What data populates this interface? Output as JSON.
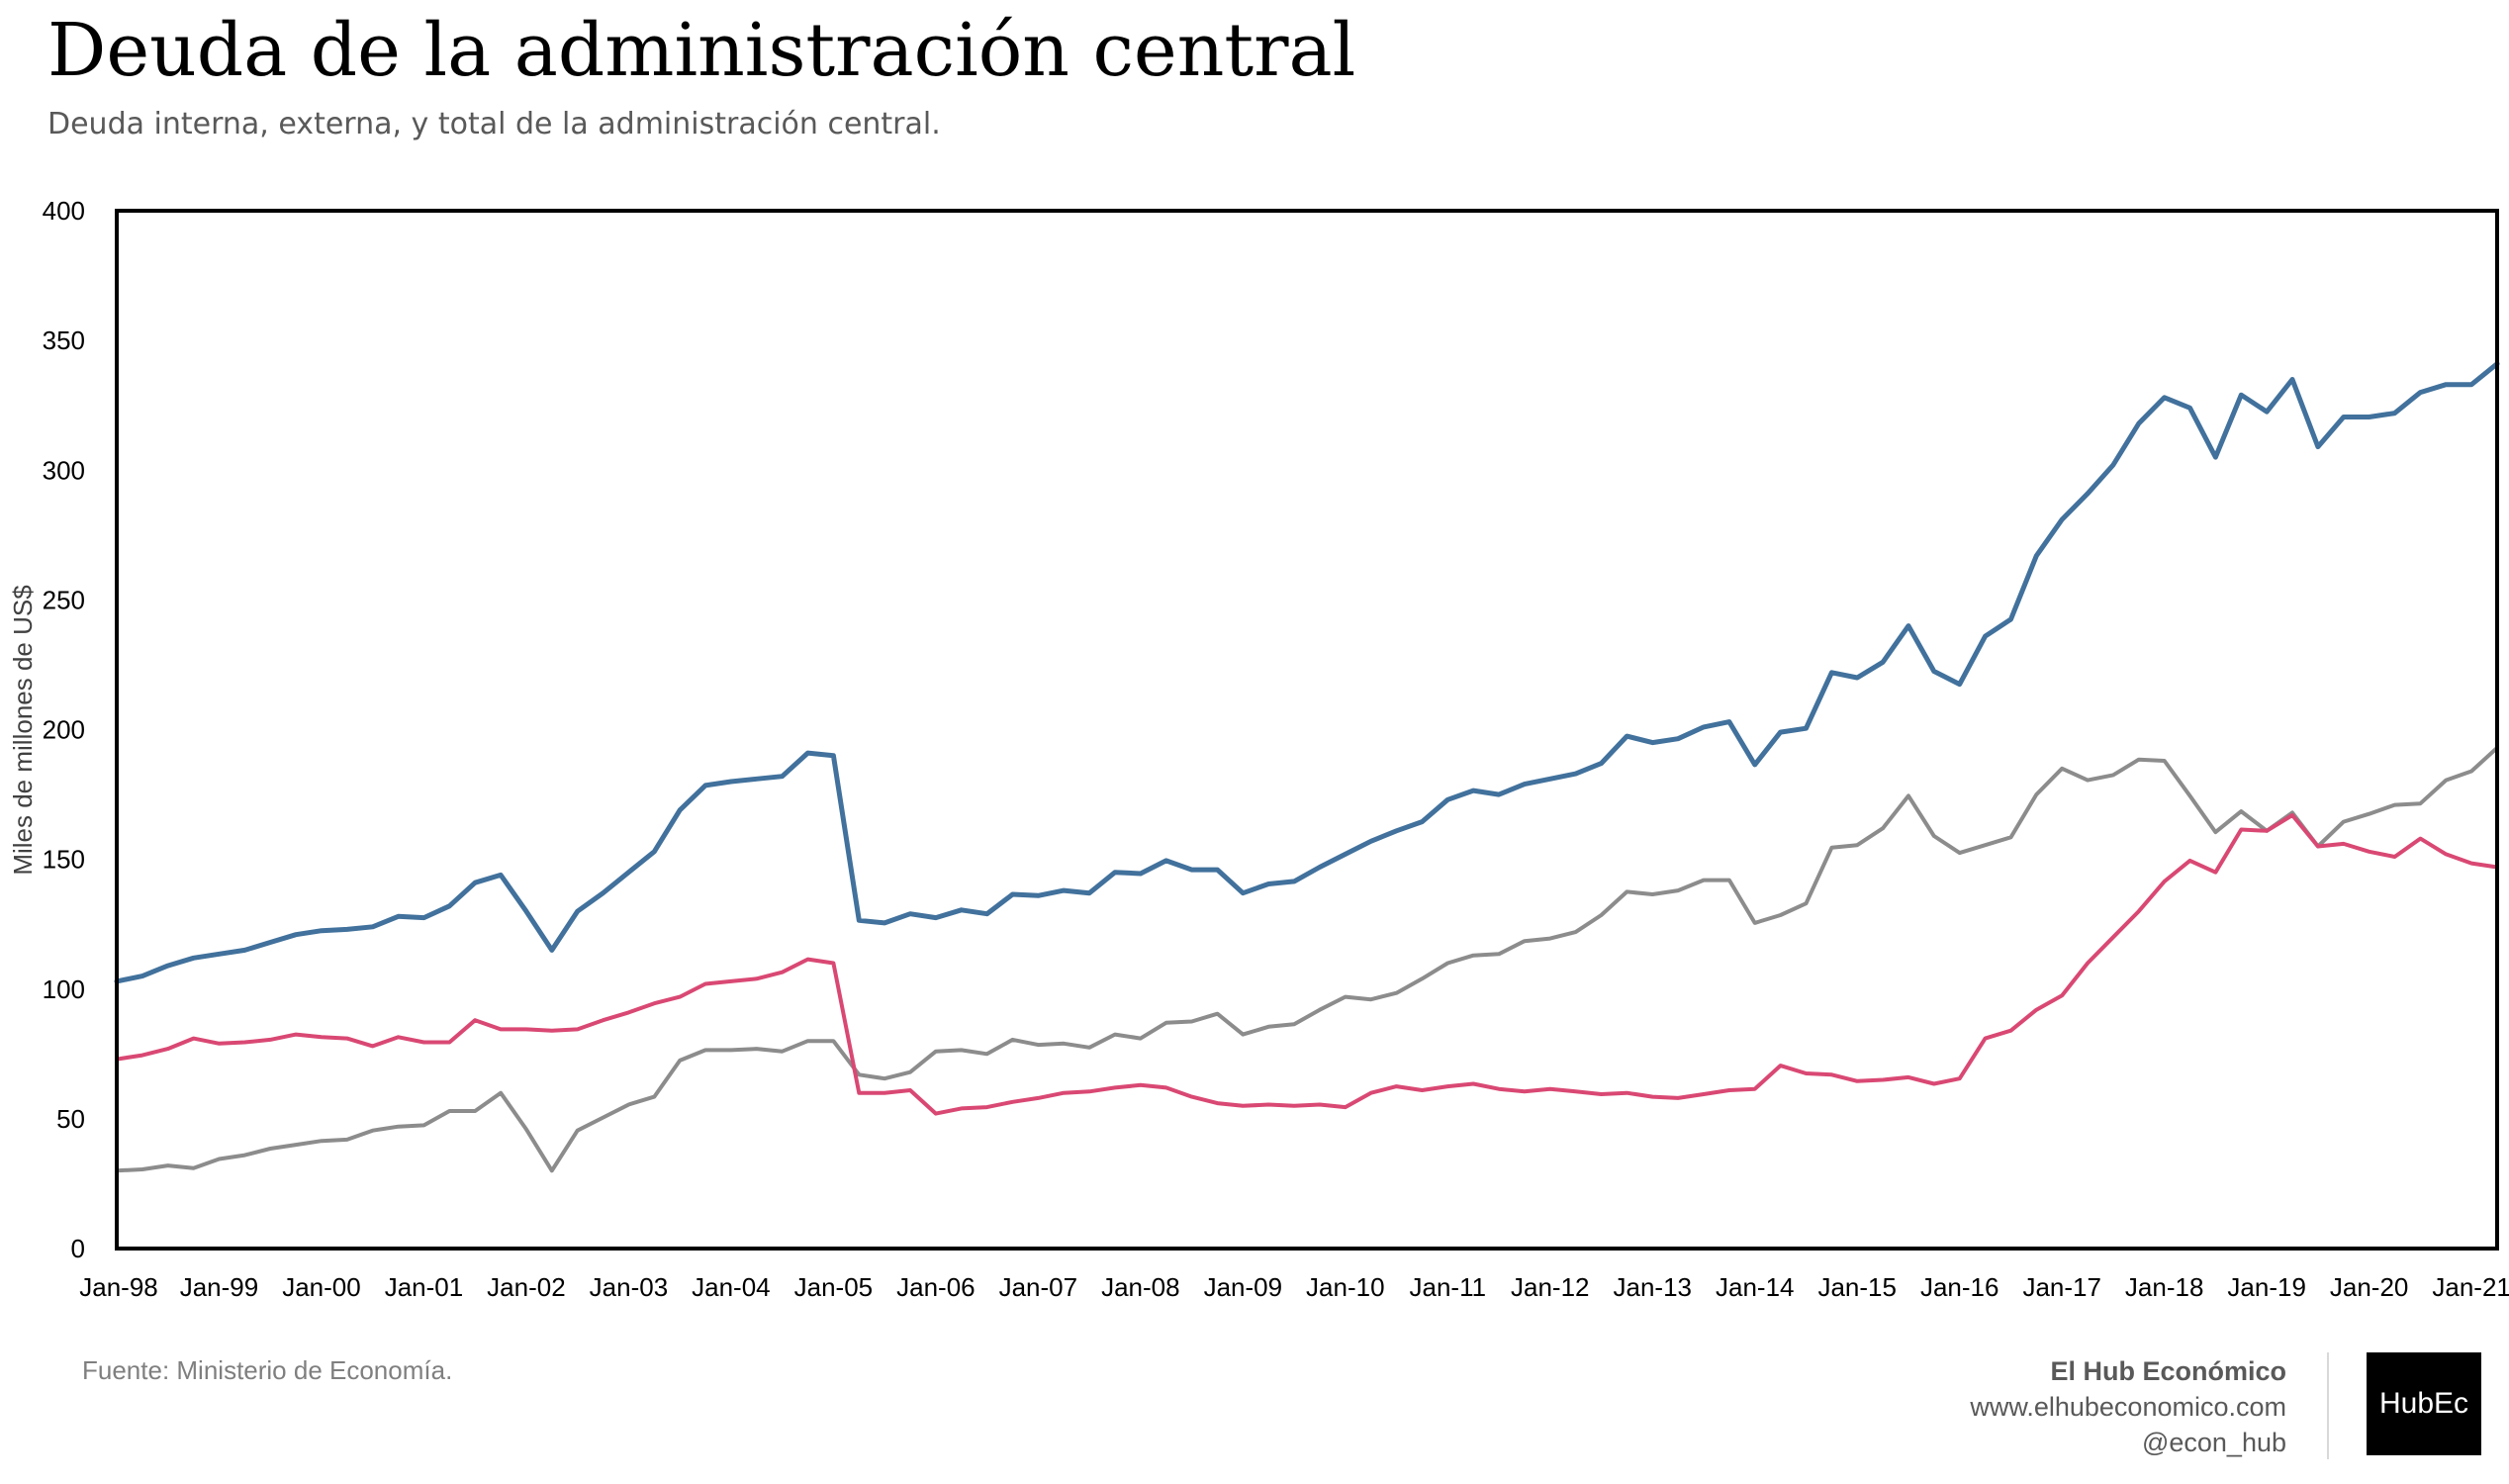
{
  "header": {
    "title": "Deuda de la administración central",
    "subtitle": "Deuda interna, externa, y total de la administración central."
  },
  "footer": {
    "source": "Fuente: Ministerio de Economía.",
    "brand_name": "El Hub Económico",
    "website": "www.elhubeconomico.com",
    "handle": "@econ_hub",
    "logo_text": "HubEc"
  },
  "chart_data": {
    "type": "line",
    "title": "Deuda de la administración central",
    "subtitle": "Deuda interna, externa, y total de la administración central.",
    "ylabel": "Miles de millones de US$",
    "xlabel": "",
    "ylim": [
      0,
      400
    ],
    "yticks": [
      0,
      50,
      100,
      150,
      200,
      250,
      300,
      350,
      400
    ],
    "xticks": [
      "Jan-98",
      "Jan-99",
      "Jan-00",
      "Jan-01",
      "Jan-02",
      "Jan-03",
      "Jan-04",
      "Jan-05",
      "Jan-06",
      "Jan-07",
      "Jan-08",
      "Jan-09",
      "Jan-10",
      "Jan-11",
      "Jan-12",
      "Jan-13",
      "Jan-14",
      "Jan-15",
      "Jan-16",
      "Jan-17",
      "Jan-18",
      "Jan-19",
      "Jan-20",
      "Jan-21"
    ],
    "x_start": "1998-01",
    "x_step": "quarter",
    "grid": false,
    "legend": "none",
    "series": [
      {
        "color": "#41719C",
        "values": [
          103,
          105,
          109,
          112,
          113.5,
          115,
          118,
          121,
          122.5,
          123,
          124,
          128,
          127.5,
          132,
          141,
          144,
          130,
          115,
          130,
          137,
          145,
          153,
          169,
          178.5,
          180,
          181,
          182,
          191,
          190,
          126.5,
          125.5,
          129,
          127.5,
          130.5,
          129,
          136.5,
          136,
          138,
          137,
          145,
          144.5,
          149.5,
          146,
          146,
          137,
          140.5,
          141.5,
          147,
          152,
          157,
          161,
          164.5,
          173,
          176.5,
          175,
          179,
          181,
          183,
          187,
          197.5,
          195,
          196.5,
          201,
          203,
          186.5,
          199,
          200.5,
          222,
          220,
          226,
          240,
          222.5,
          217.5,
          236,
          242.5,
          267,
          281,
          291,
          302,
          318,
          328,
          324,
          305,
          329,
          322.5,
          335,
          309,
          320.5,
          320.5,
          322,
          330,
          333,
          333,
          341
        ]
      },
      {
        "color": "#D94873",
        "values": [
          73,
          74.5,
          77,
          81,
          79,
          79.5,
          80.5,
          82.5,
          81.5,
          81,
          78,
          81.5,
          79.5,
          79.5,
          88,
          84.5,
          84.5,
          84,
          84.5,
          88,
          91,
          94.5,
          97,
          102,
          103,
          104,
          106.5,
          111.5,
          110,
          60,
          60,
          61,
          52,
          54,
          54.5,
          56.5,
          58,
          60,
          60.5,
          62,
          63,
          62,
          58.5,
          56,
          55,
          55.5,
          55,
          55.5,
          54.5,
          60,
          62.5,
          61,
          62.5,
          63.5,
          61.5,
          60.5,
          61.5,
          60.5,
          59.5,
          60,
          58.5,
          58,
          59.5,
          61,
          61.5,
          70.5,
          67.5,
          67,
          64.5,
          65,
          66,
          63.5,
          65.5,
          81,
          84,
          92,
          97.5,
          110,
          120,
          130,
          141.5,
          149.5,
          145,
          161.5,
          161,
          167,
          155,
          156,
          153,
          151,
          158,
          152,
          148.5,
          147
        ]
      },
      {
        "color": "#8C8C8C",
        "values": [
          30,
          30.5,
          32,
          31,
          34.5,
          36,
          38.5,
          40,
          41.5,
          42,
          45.5,
          47,
          47.5,
          53,
          53,
          60,
          46,
          30,
          45.5,
          50.5,
          55.5,
          58.5,
          72.5,
          76.5,
          76.5,
          77,
          76,
          80,
          80,
          67,
          65.5,
          68,
          76,
          76.5,
          75,
          80.5,
          78.5,
          79,
          77.5,
          82.5,
          81,
          87,
          87.5,
          90.5,
          82.5,
          85.5,
          86.5,
          92,
          97,
          96,
          98.5,
          104,
          110,
          113,
          113.5,
          118.5,
          119.5,
          122,
          128.5,
          137.5,
          136.5,
          138,
          142,
          142,
          125.5,
          128.5,
          133,
          154.5,
          155.5,
          162,
          174.5,
          159,
          152.5,
          155.5,
          158.5,
          175,
          185,
          180.5,
          182.5,
          188.5,
          188,
          174.5,
          160.5,
          168.5,
          161,
          168,
          155,
          164.5,
          167.5,
          171,
          171.5,
          180.5,
          184,
          193
        ]
      }
    ]
  }
}
